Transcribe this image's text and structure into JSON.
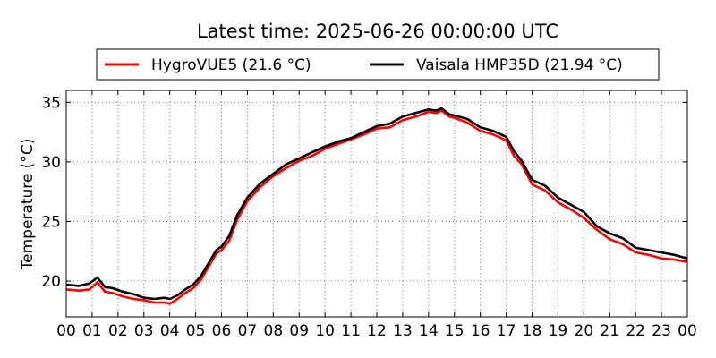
{
  "chart_data": {
    "type": "line",
    "title": "Latest time: 2025-06-26 00:00:00 UTC",
    "xlabel": "",
    "ylabel": "Temperature (°C)",
    "xlim": [
      0,
      24
    ],
    "ylim": [
      17,
      36
    ],
    "grid": true,
    "legend_position": "top",
    "x_ticks": [
      0,
      1,
      2,
      3,
      4,
      5,
      6,
      7,
      8,
      9,
      10,
      11,
      12,
      13,
      14,
      15,
      16,
      17,
      18,
      19,
      20,
      21,
      22,
      23,
      24
    ],
    "x_tick_labels": [
      "00",
      "01",
      "02",
      "03",
      "04",
      "05",
      "06",
      "07",
      "08",
      "09",
      "10",
      "11",
      "12",
      "13",
      "14",
      "15",
      "16",
      "17",
      "18",
      "19",
      "20",
      "21",
      "22",
      "23",
      "00"
    ],
    "y_ticks": [
      20,
      25,
      30,
      35
    ],
    "y_tick_labels": [
      "20",
      "25",
      "30",
      "35"
    ],
    "series": [
      {
        "name": "HygroVUE5 (21.6 °C)",
        "color": "#ff0000",
        "x": [
          0,
          0.5,
          0.9,
          1.2,
          1.5,
          1.8,
          2.2,
          2.6,
          3.0,
          3.4,
          3.8,
          4.0,
          4.3,
          4.6,
          4.9,
          5.2,
          5.5,
          5.8,
          6.0,
          6.3,
          6.6,
          7.0,
          7.5,
          8.0,
          8.5,
          9.0,
          9.5,
          10.0,
          10.5,
          11.0,
          11.5,
          12.0,
          12.5,
          13.0,
          13.5,
          14.0,
          14.3,
          14.5,
          14.8,
          15.0,
          15.5,
          16.0,
          16.5,
          17.0,
          17.3,
          17.6,
          18.0,
          18.5,
          19.0,
          19.5,
          20.0,
          20.5,
          21.0,
          21.5,
          22.0,
          22.5,
          23.0,
          23.5,
          24.0
        ],
        "y": [
          19.3,
          19.2,
          19.3,
          19.9,
          19.1,
          19.0,
          18.7,
          18.5,
          18.4,
          18.2,
          18.2,
          18.1,
          18.5,
          19.0,
          19.4,
          20.1,
          21.2,
          22.3,
          22.6,
          23.4,
          25.1,
          26.7,
          27.9,
          28.8,
          29.5,
          30.1,
          30.5,
          31.1,
          31.5,
          31.9,
          32.3,
          32.8,
          32.9,
          33.5,
          33.8,
          34.2,
          34.1,
          34.3,
          33.8,
          33.7,
          33.3,
          32.6,
          32.3,
          31.8,
          30.5,
          29.8,
          28.1,
          27.6,
          26.6,
          26.0,
          25.3,
          24.3,
          23.5,
          23.1,
          22.4,
          22.2,
          21.9,
          21.8,
          21.6
        ]
      },
      {
        "name": "Vaisala HMP35D (21.94 °C)",
        "color": "#000000",
        "x": [
          0,
          0.5,
          0.9,
          1.2,
          1.5,
          1.8,
          2.2,
          2.6,
          3.0,
          3.4,
          3.8,
          4.0,
          4.3,
          4.6,
          4.9,
          5.2,
          5.5,
          5.8,
          6.0,
          6.3,
          6.6,
          7.0,
          7.5,
          8.0,
          8.5,
          9.0,
          9.5,
          10.0,
          10.5,
          11.0,
          11.5,
          12.0,
          12.5,
          13.0,
          13.5,
          14.0,
          14.3,
          14.5,
          14.8,
          15.0,
          15.5,
          16.0,
          16.5,
          17.0,
          17.3,
          17.6,
          18.0,
          18.5,
          19.0,
          19.5,
          20.0,
          20.5,
          21.0,
          21.5,
          22.0,
          22.5,
          23.0,
          23.5,
          24.0
        ],
        "y": [
          19.7,
          19.6,
          19.8,
          20.3,
          19.5,
          19.4,
          19.1,
          18.9,
          18.6,
          18.5,
          18.6,
          18.5,
          18.8,
          19.3,
          19.7,
          20.4,
          21.5,
          22.6,
          22.9,
          23.8,
          25.5,
          27.0,
          28.2,
          29.0,
          29.8,
          30.3,
          30.8,
          31.3,
          31.7,
          32.0,
          32.5,
          33.0,
          33.2,
          33.8,
          34.1,
          34.4,
          34.3,
          34.5,
          34.0,
          33.9,
          33.6,
          32.9,
          32.6,
          32.1,
          30.9,
          30.1,
          28.5,
          28.0,
          27.0,
          26.4,
          25.8,
          24.6,
          24.0,
          23.6,
          22.8,
          22.6,
          22.4,
          22.2,
          21.9
        ]
      }
    ]
  }
}
